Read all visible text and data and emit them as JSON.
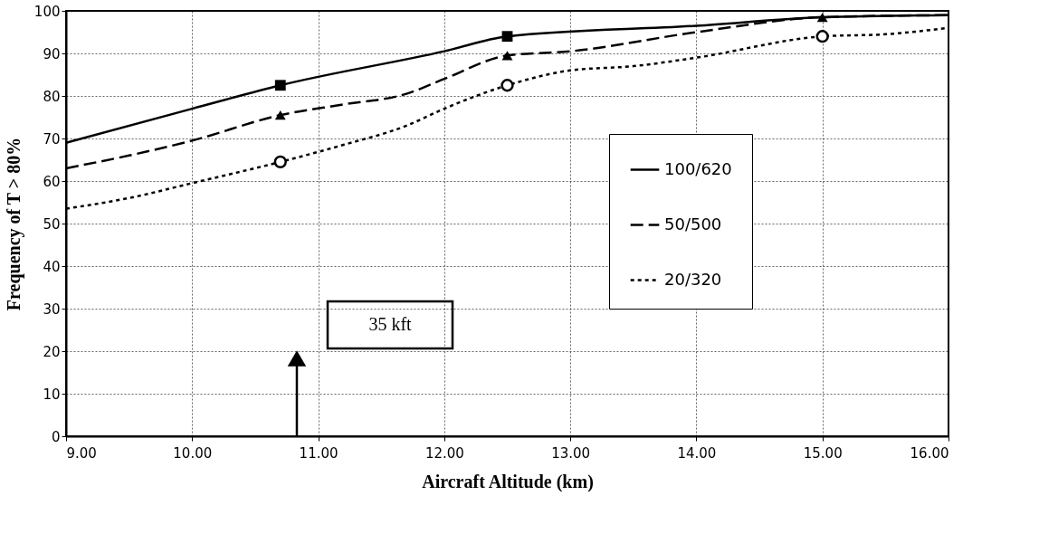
{
  "chart_data": {
    "type": "line",
    "xlabel": "Aircraft Altitude (km)",
    "ylabel": "Frequency of T > 80%",
    "xlim": [
      9,
      16
    ],
    "ylim": [
      0,
      100
    ],
    "xticks": [
      {
        "value": 9,
        "label": "9.00"
      },
      {
        "value": 10,
        "label": "10.00"
      },
      {
        "value": 11,
        "label": "11.00"
      },
      {
        "value": 12,
        "label": "12.00"
      },
      {
        "value": 13,
        "label": "13.00"
      },
      {
        "value": 14,
        "label": "14.00"
      },
      {
        "value": 15,
        "label": "15.00"
      },
      {
        "value": 16,
        "label": "16.00"
      }
    ],
    "yticks": [
      0,
      10,
      20,
      30,
      40,
      50,
      60,
      70,
      80,
      90,
      100
    ],
    "grid": true,
    "legend": "right",
    "series": [
      {
        "name": "100/620",
        "color": "#000000",
        "line_style": "solid",
        "x": [
          9,
          10,
          10.7,
          12,
          12.5,
          14,
          15,
          16
        ],
        "values": [
          69,
          77,
          82.5,
          90.5,
          94,
          96.5,
          98.5,
          99
        ]
      },
      {
        "name": "50/500",
        "color": "#000000",
        "line_style": "dashed",
        "x": [
          9,
          9.5,
          10,
          10.7,
          11.2,
          11.7,
          12,
          12.5,
          13,
          14,
          15,
          16
        ],
        "values": [
          63,
          66,
          69.5,
          75.5,
          78,
          80.5,
          84,
          89.5,
          90.5,
          95,
          98.5,
          99
        ]
      },
      {
        "name": "20/320",
        "color": "#000000",
        "line_style": "dotted",
        "x": [
          9,
          9.5,
          10,
          10.7,
          11.2,
          11.7,
          12,
          12.5,
          13,
          13.5,
          14,
          15,
          15.5,
          16
        ],
        "values": [
          53.5,
          56,
          59.5,
          64.5,
          68.5,
          73,
          77,
          82.5,
          86,
          87,
          89,
          94,
          94.5,
          96
        ]
      },
      {
        "type": "scatter",
        "marker": "square",
        "color": "#000000",
        "x": [
          10.7,
          12.5
        ],
        "values": [
          82.5,
          94
        ]
      },
      {
        "type": "scatter",
        "marker": "triangle",
        "color": "#000000",
        "x": [
          10.7,
          12.5,
          15
        ],
        "values": [
          75.5,
          89.5,
          98.5
        ]
      },
      {
        "type": "scatter",
        "marker": "circle",
        "color": "#000000",
        "x": [
          10.7,
          12.5,
          15
        ],
        "values": [
          64.5,
          82.5,
          94
        ]
      }
    ],
    "annotations": [
      "35 kft"
    ]
  }
}
